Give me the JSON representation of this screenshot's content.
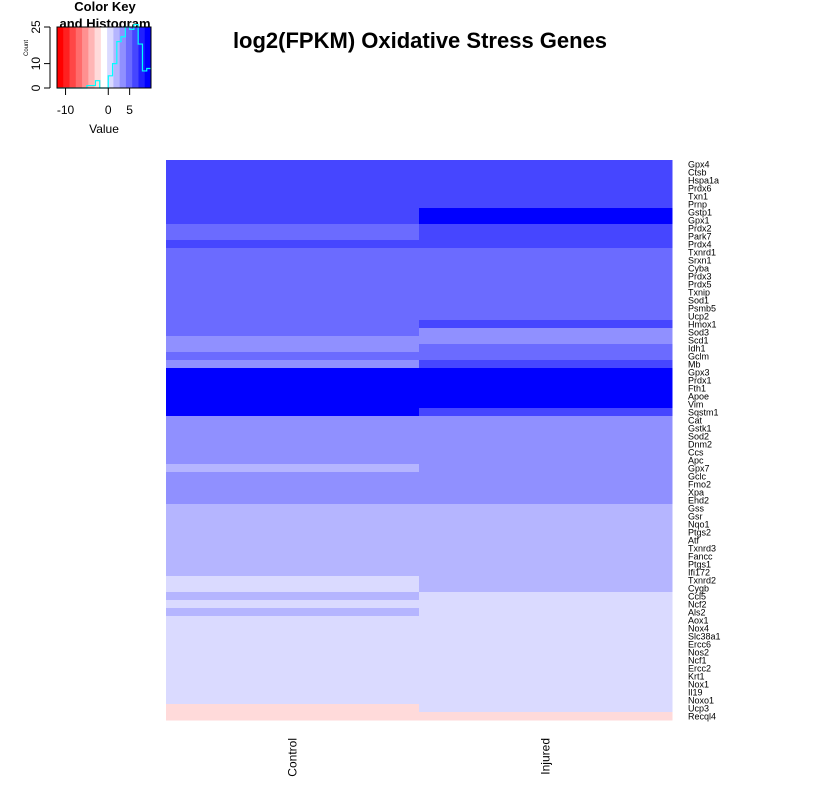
{
  "chart_data": [
    {
      "type": "heatmap",
      "title": "log2(FPKM) Oxidative Stress Genes",
      "columns": [
        "Control",
        "Injured"
      ],
      "rows": [
        "Gpx4",
        "Ctsb",
        "Hspa1a",
        "Prdx6",
        "Txn1",
        "Prnp",
        "Gstp1",
        "Gpx1",
        "Prdx2",
        "Park7",
        "Prdx4",
        "Txnrd1",
        "Srxn1",
        "Cyba",
        "Prdx3",
        "Prdx5",
        "Txnip",
        "Sod1",
        "Psmb5",
        "Ucp2",
        "Hmox1",
        "Sod3",
        "Scd1",
        "Idh1",
        "Gclm",
        "Mb",
        "Gpx3",
        "Prdx1",
        "Fth1",
        "Apoe",
        "Vim",
        "Sqstm1",
        "Cat",
        "Gstk1",
        "Sod2",
        "Dnm2",
        "Ccs",
        "Apc",
        "Gpx7",
        "Gclc",
        "Fmo2",
        "Xpa",
        "Ehd2",
        "Gss",
        "Gsr",
        "Nqo1",
        "Ptgs2",
        "Atf",
        "Txnrd3",
        "Fancc",
        "Ptgs1",
        "Ifi172",
        "Txnrd2",
        "Cygb",
        "Ccl5",
        "Ncf2",
        "Als2",
        "Aox1",
        "Nox4",
        "Slc38a1",
        "Ercc6",
        "Nos2",
        "Ncf1",
        "Ercc2",
        "Krt1",
        "Nox1",
        "Il19",
        "Noxo1",
        "Ucp3",
        "Recql4"
      ],
      "values": [
        [
          7,
          7
        ],
        [
          7,
          7
        ],
        [
          7,
          7
        ],
        [
          7,
          7
        ],
        [
          7,
          7
        ],
        [
          7,
          7
        ],
        [
          7,
          9
        ],
        [
          7,
          9
        ],
        [
          5,
          7
        ],
        [
          5,
          7
        ],
        [
          7,
          7
        ],
        [
          5,
          5
        ],
        [
          5,
          5
        ],
        [
          5,
          5
        ],
        [
          5,
          5
        ],
        [
          5,
          5
        ],
        [
          5,
          5
        ],
        [
          5,
          5
        ],
        [
          5,
          5
        ],
        [
          5,
          5
        ],
        [
          5,
          7
        ],
        [
          5,
          3
        ],
        [
          3,
          3
        ],
        [
          3,
          5
        ],
        [
          5,
          5
        ],
        [
          3,
          7
        ],
        [
          10,
          10
        ],
        [
          10,
          10
        ],
        [
          10,
          10
        ],
        [
          9,
          10
        ],
        [
          9,
          10
        ],
        [
          9,
          7
        ],
        [
          3,
          3
        ],
        [
          3,
          3
        ],
        [
          3,
          3
        ],
        [
          3,
          3
        ],
        [
          3,
          3
        ],
        [
          3,
          3
        ],
        [
          2,
          3
        ],
        [
          3,
          3
        ],
        [
          3,
          3
        ],
        [
          3,
          3
        ],
        [
          3,
          3
        ],
        [
          2,
          2
        ],
        [
          2,
          2
        ],
        [
          2,
          2
        ],
        [
          2,
          2
        ],
        [
          2,
          2
        ],
        [
          2,
          2
        ],
        [
          2,
          2
        ],
        [
          2,
          2
        ],
        [
          2,
          2
        ],
        [
          1,
          2
        ],
        [
          1,
          2
        ],
        [
          2,
          1
        ],
        [
          1,
          1
        ],
        [
          2,
          1
        ],
        [
          1,
          1
        ],
        [
          1,
          1
        ],
        [
          0,
          1
        ],
        [
          0,
          1
        ],
        [
          1,
          1
        ],
        [
          0,
          1
        ],
        [
          0,
          0
        ],
        [
          0,
          0
        ],
        [
          0,
          0
        ],
        [
          0,
          0
        ],
        [
          0,
          0
        ],
        [
          -2,
          0
        ],
        [
          -2,
          -2
        ]
      ]
    },
    {
      "type": "bar",
      "title": "Color Key and Histogram",
      "xlabel": "Value",
      "ylabel": "Count",
      "xticks": [
        "-10",
        "0",
        "5"
      ],
      "yticks": [
        "0",
        "10",
        "25"
      ],
      "xlim": [
        -12,
        10
      ],
      "ylim": [
        0,
        25
      ],
      "color_stops": [
        "#ff0000",
        "#ff2020",
        "#ff4646",
        "#ff6b6b",
        "#ff9090",
        "#ffb5b5",
        "#ffdada",
        "#ffffff",
        "#dadaff",
        "#b5b5ff",
        "#9090ff",
        "#6b6bff",
        "#4646ff",
        "#2020ff",
        "#0000ff"
      ],
      "bins": [
        -12,
        -11,
        -10,
        -9,
        -8,
        -7,
        -6,
        -5,
        -4,
        -3,
        -2,
        -1,
        0,
        1,
        2,
        3,
        4,
        5,
        6,
        7,
        8,
        9,
        10
      ],
      "counts": [
        0,
        0,
        0,
        0,
        0,
        0,
        0,
        1,
        1,
        3,
        0,
        0,
        5,
        10,
        19,
        21,
        25,
        24,
        26,
        18,
        7,
        8
      ]
    }
  ]
}
